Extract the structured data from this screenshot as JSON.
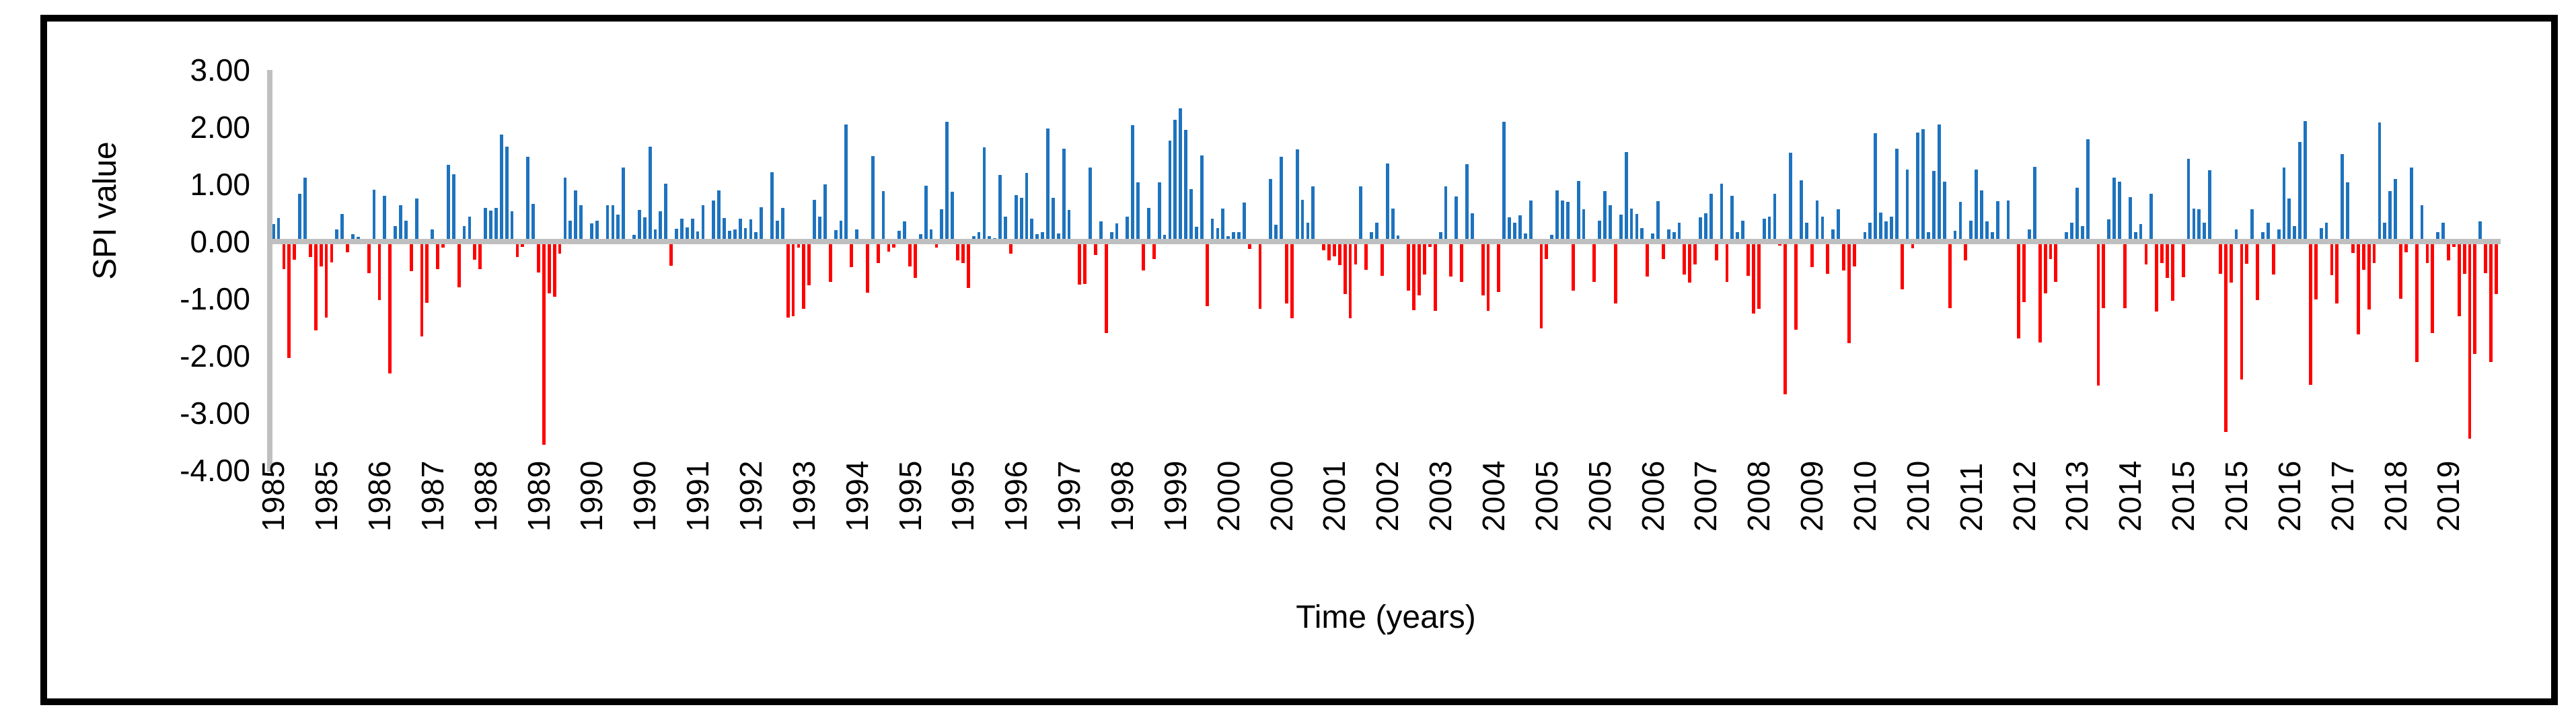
{
  "chart_data": {
    "type": "bar",
    "title": "",
    "xlabel": "Time (years)",
    "ylabel": "SPI value",
    "ylim": [
      -4.0,
      3.0
    ],
    "grid": "off",
    "legend": "none",
    "frequency": "monthly",
    "start_label": "1985",
    "y_ticks": [
      "3.00",
      "2.00",
      "1.00",
      "0.00",
      "-1.00",
      "-2.00",
      "-3.00",
      "-4.00"
    ],
    "x_tick_interval_bars": 10,
    "x_tick_labels": [
      "1985",
      "1985",
      "1986",
      "1987",
      "1988",
      "1989",
      "1990",
      "1990",
      "1991",
      "1992",
      "1993",
      "1994",
      "1995",
      "1995",
      "1996",
      "1997",
      "1998",
      "1999",
      "2000",
      "2000",
      "2001",
      "2002",
      "2003",
      "2004",
      "2005",
      "2005",
      "2006",
      "2007",
      "2008",
      "2009",
      "2010",
      "2010",
      "2011",
      "2012",
      "2013",
      "2014",
      "2015",
      "2015",
      "2016",
      "2017",
      "2018",
      "2019"
    ],
    "positive_color": "#1E73BE",
    "negative_color": "#FF0000",
    "axis_color": "#BFBFBF",
    "text_color": "#000000",
    "values": [
      0.31,
      0.41,
      -0.48,
      -2.04,
      -0.32,
      0.84,
      1.12,
      -0.27,
      -1.55,
      -0.43,
      -1.33,
      -0.37,
      0.21,
      0.48,
      -0.19,
      0.13,
      0.08,
      0,
      -0.55,
      0.91,
      -1.02,
      0.8,
      -2.3,
      0.27,
      0.64,
      0.37,
      -0.52,
      0.75,
      -1.66,
      -1.07,
      0.21,
      -0.48,
      -0.11,
      1.34,
      1.18,
      -0.8,
      0.27,
      0.43,
      -0.32,
      -0.48,
      0.59,
      0.54,
      0.59,
      1.87,
      1.66,
      0.53,
      -0.27,
      -0.09,
      1.48,
      0.66,
      -0.54,
      -3.55,
      -0.91,
      -0.96,
      -0.21,
      1.12,
      0.37,
      0.89,
      0.64,
      -0.05,
      0.32,
      0.37,
      0,
      0.64,
      0.64,
      0.47,
      1.29,
      -0.04,
      0.12,
      0.55,
      0.42,
      1.66,
      0.21,
      0.53,
      1.01,
      -0.42,
      0.22,
      0.4,
      0.25,
      0.4,
      0.18,
      0.63,
      0,
      0.72,
      0.89,
      0.41,
      0.19,
      0.21,
      0.4,
      0.24,
      0.39,
      0.17,
      0.6,
      0,
      1.21,
      0.36,
      0.59,
      -1.33,
      -1.3,
      -0.11,
      -1.18,
      -0.76,
      0.73,
      0.43,
      1,
      -0.7,
      0.2,
      0.36,
      2.05,
      -0.45,
      0.21,
      -0.04,
      -0.89,
      1.5,
      -0.38,
      0.88,
      -0.18,
      -0.1,
      0.19,
      0.35,
      -0.44,
      -0.64,
      0.13,
      0.98,
      0.21,
      -0.11,
      0.56,
      2.09,
      0.87,
      -0.33,
      -0.38,
      -0.81,
      0.1,
      0.17,
      1.65,
      0.09,
      0.06,
      1.16,
      0.43,
      -0.21,
      0.81,
      0.76,
      1.2,
      0.4,
      0.13,
      0.17,
      1.98,
      0.76,
      0.14,
      1.62,
      0.55,
      0,
      -0.75,
      -0.74,
      1.29,
      -0.23,
      0.35,
      -1.6,
      0.17,
      0.32,
      0,
      0.43,
      2.03,
      1.03,
      -0.5,
      0.59,
      -0.31,
      1.04,
      0.12,
      1.76,
      2.13,
      2.33,
      1.95,
      0.92,
      0.26,
      1.51,
      -1.13,
      0.4,
      0.24,
      0.58,
      0.09,
      0.16,
      0.17,
      0.68,
      -0.13,
      0.04,
      -1.18,
      0.03,
      1.09,
      0.3,
      1.48,
      -1.08,
      -1.34,
      1.61,
      0.73,
      0.33,
      0.96,
      0,
      -0.15,
      -0.33,
      -0.26,
      -0.41,
      -0.92,
      -1.34,
      -0.4,
      0.96,
      -0.49,
      0.17,
      0.33,
      -0.6,
      1.36,
      0.58,
      0.11,
      0,
      -0.86,
      -1.2,
      -0.94,
      -0.58,
      -0.09,
      -1.21,
      0.17,
      0.96,
      -0.61,
      0.79,
      -0.71,
      1.35,
      0.49,
      0,
      -0.94,
      -1.21,
      0,
      -0.88,
      2.09,
      0.42,
      0.33,
      0.46,
      0.14,
      0.72,
      0,
      -1.52,
      -0.31,
      0.12,
      0.9,
      0.72,
      0.69,
      -0.86,
      1.06,
      0.56,
      -0.03,
      -0.7,
      0.37,
      0.88,
      0.64,
      -1.08,
      0.47,
      1.56,
      0.58,
      0.48,
      0.24,
      -0.61,
      0.14,
      0.71,
      -0.3,
      0.21,
      0.17,
      0.33,
      -0.58,
      -0.72,
      -0.4,
      0.42,
      0.49,
      0.84,
      -0.33,
      1.01,
      -0.7,
      0.8,
      0.17,
      0.37,
      -0.6,
      -1.26,
      -1.18,
      0.4,
      0.43,
      0.84,
      -0.07,
      -2.67,
      1.55,
      -1.54,
      1.07,
      0.33,
      -0.45,
      0.72,
      0.44,
      -0.57,
      0.21,
      0.57,
      -0.51,
      -1.78,
      -0.43,
      0.04,
      0.16,
      0.33,
      1.9,
      0.51,
      0.35,
      0.43,
      1.62,
      -0.84,
      1.26,
      -0.12,
      1.91,
      1.97,
      0.16,
      1.23,
      2.05,
      1.05,
      -1.17,
      0.19,
      0.7,
      -0.33,
      0.37,
      1.26,
      0.89,
      0.35,
      0.17,
      0.71,
      0.04,
      0.72,
      0,
      -1.69,
      -1.06,
      0.21,
      1.31,
      -1.76,
      -0.91,
      -0.3,
      -0.71,
      0,
      0.17,
      0.33,
      0.94,
      0.27,
      1.79,
      0,
      -2.52,
      -1.16,
      0.39,
      1.12,
      1.05,
      -1.16,
      0.78,
      0.17,
      0.31,
      -0.4,
      0.84,
      -1.22,
      -0.38,
      -0.64,
      -1.04,
      0.02,
      -0.62,
      1.45,
      0.58,
      0.57,
      0.33,
      1.25,
      0,
      -0.57,
      -3.33,
      -0.72,
      0.21,
      -2.41,
      -0.39,
      0.56,
      -1.02,
      0.16,
      0.33,
      -0.58,
      0.21,
      1.29,
      0.75,
      0.27,
      1.74,
      2.11,
      -2.5,
      -1.01,
      0.24,
      0.33,
      -0.59,
      -1.08,
      1.53,
      1.03,
      -0.2,
      -1.62,
      -0.49,
      -1.19,
      -0.38,
      2.08,
      0.33,
      0.88,
      1.09,
      -1,
      -0.19,
      1.29,
      -2.1,
      0.63,
      -0.38,
      -1.6,
      0.16,
      0.33,
      -0.33,
      -0.09,
      -1.3,
      -0.57,
      -3.45,
      -1.96,
      0.35,
      -0.55,
      -2.1,
      -0.92
    ]
  }
}
